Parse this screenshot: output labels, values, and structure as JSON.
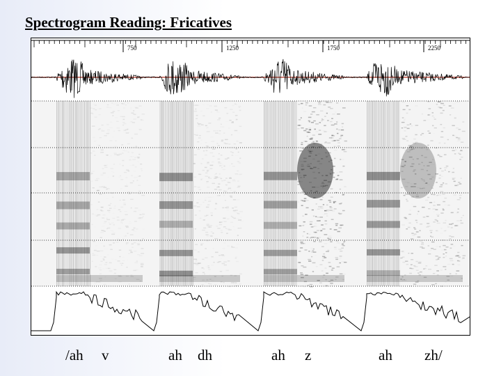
{
  "slide": {
    "title": "Spectrogram Reading: Fricatives"
  },
  "time_axis": {
    "ticks": [
      "750",
      "1250",
      "1750",
      "2250"
    ]
  },
  "segments": [
    {
      "vowel": "/ah",
      "fricative": "v"
    },
    {
      "vowel": "ah",
      "fricative": "dh"
    },
    {
      "vowel": "ah",
      "fricative": "z"
    },
    {
      "vowel": "ah",
      "fricative": "zh/"
    }
  ],
  "colors": {
    "waveform": "#000000",
    "baseline": "#b03020",
    "gridline": "#000000",
    "spectrogram_ink": "#000000"
  }
}
